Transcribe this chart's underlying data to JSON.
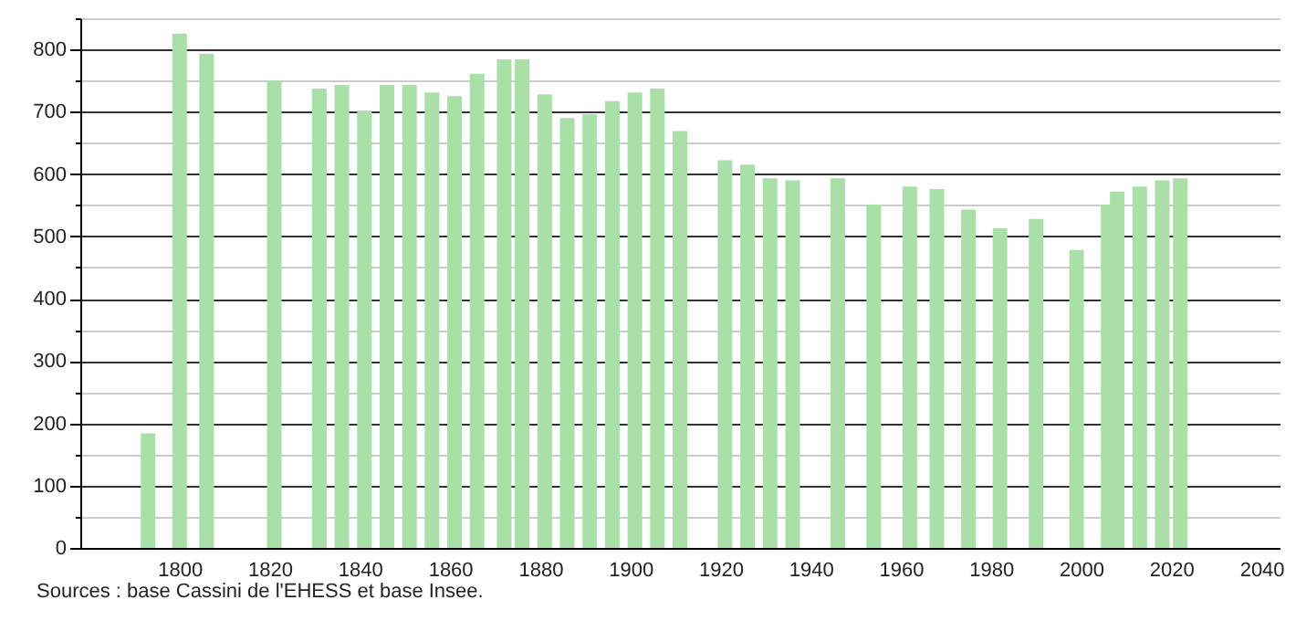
{
  "chart_data": {
    "type": "bar",
    "x": [
      1793,
      1800,
      1806,
      1821,
      1831,
      1836,
      1841,
      1846,
      1851,
      1856,
      1861,
      1866,
      1872,
      1876,
      1881,
      1886,
      1891,
      1896,
      1901,
      1906,
      1911,
      1921,
      1926,
      1931,
      1936,
      1946,
      1954,
      1962,
      1968,
      1975,
      1982,
      1990,
      1999,
      2006,
      2008,
      2013,
      2018,
      2022
    ],
    "values": [
      184,
      825,
      793,
      750,
      737,
      743,
      702,
      743,
      743,
      731,
      725,
      761,
      784,
      784,
      728,
      690,
      696,
      717,
      731,
      737,
      669,
      622,
      615,
      593,
      590,
      593,
      551,
      580,
      576,
      543,
      513,
      528,
      478,
      551,
      572,
      580,
      590,
      593
    ],
    "color": "#a8e0a8",
    "xlim": [
      1780,
      2042
    ],
    "xticks": [
      1800,
      1820,
      1840,
      1860,
      1880,
      1900,
      1920,
      1940,
      1960,
      1980,
      2000,
      2020,
      2040
    ],
    "ylim": [
      0,
      850
    ],
    "yticks": [
      0,
      {
        "value": 50,
        "label": null
      },
      100,
      {
        "value": 150,
        "label": null
      },
      200,
      {
        "value": 250,
        "label": null
      },
      300,
      {
        "value": 350,
        "label": null
      },
      400,
      {
        "value": 450,
        "label": null
      },
      500,
      {
        "value": 550,
        "label": null
      },
      600,
      {
        "value": 650,
        "label": null
      },
      700,
      {
        "value": 750,
        "label": null
      },
      800,
      {
        "value": 850,
        "label": null
      }
    ],
    "grid": true,
    "annotations": [
      "Sources : base Cassini de l'EHESS et base Insee."
    ]
  }
}
